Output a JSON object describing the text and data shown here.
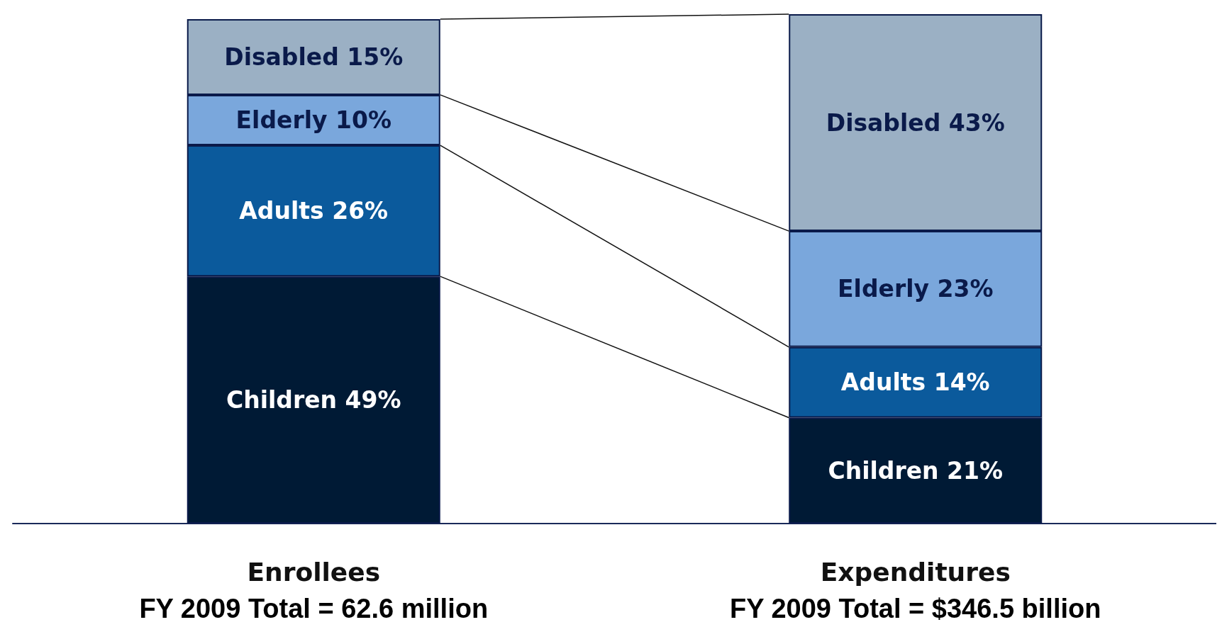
{
  "chart_data": {
    "type": "bar",
    "stacked": true,
    "categories": [
      "Enrollees",
      "Expenditures"
    ],
    "series": [
      {
        "color": "#001a35",
        "values": [
          49,
          21
        ],
        "value_labels": [
          "Children 49%",
          "Children 21%"
        ]
      },
      {
        "color": "#0b5a9c",
        "values": [
          26,
          14
        ],
        "value_labels": [
          "Adults 26%",
          "Adults 14%"
        ]
      },
      {
        "color": "#7aa7dc",
        "values": [
          10,
          23
        ],
        "value_labels": [
          "Elderly 10%",
          "Elderly 23%"
        ]
      },
      {
        "color": "#9bb0c4",
        "values": [
          15,
          43
        ],
        "value_labels": [
          "Disabled 15%",
          "Disabled 43%"
        ]
      }
    ],
    "annotations": [
      "FY 2009 Total = 62.6 million",
      "FY 2009 Total = $346.5 billion"
    ]
  }
}
